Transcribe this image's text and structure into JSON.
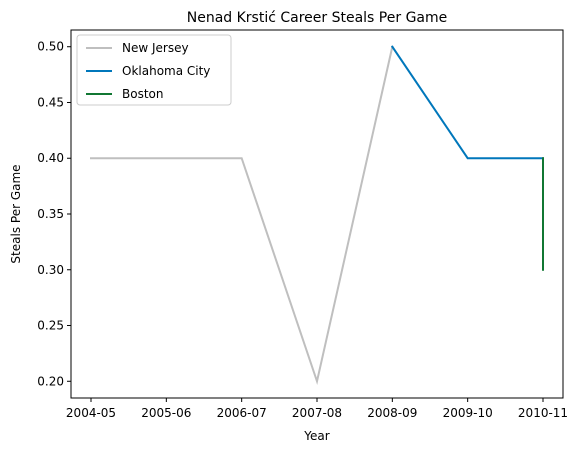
{
  "chart_data": {
    "type": "line",
    "title": "Nenad Krstić Career Steals Per Game",
    "xlabel": "Year",
    "ylabel": "Steals Per Game",
    "x_ticks": [
      "2004-05",
      "2005-06",
      "2006-07",
      "2007-08",
      "2008-09",
      "2009-10",
      "2010-11"
    ],
    "ylim": [
      0.185,
      0.515
    ],
    "y_ticks": [
      "0.20",
      "0.25",
      "0.30",
      "0.35",
      "0.40",
      "0.45",
      "0.50"
    ],
    "legend_position": "top-left",
    "grid": false,
    "series": [
      {
        "name": "New Jersey",
        "color": "#bfbfbf",
        "points": [
          {
            "x": "2004-05",
            "y": 0.4
          },
          {
            "x": "2005-06",
            "y": 0.4
          },
          {
            "x": "2006-07",
            "y": 0.4
          },
          {
            "x": "2007-08",
            "y": 0.2
          },
          {
            "x": "2008-09",
            "y": 0.5
          }
        ]
      },
      {
        "name": "Oklahoma City",
        "color": "#0077bb",
        "points": [
          {
            "x": "2008-09",
            "y": 0.5
          },
          {
            "x": "2009-10",
            "y": 0.4
          },
          {
            "x": "2010-11",
            "y": 0.4
          }
        ]
      },
      {
        "name": "Boston",
        "color": "#117733",
        "points": [
          {
            "x": "2010-11",
            "y": 0.4
          },
          {
            "x": "2010-11",
            "y": 0.3
          }
        ]
      }
    ]
  }
}
